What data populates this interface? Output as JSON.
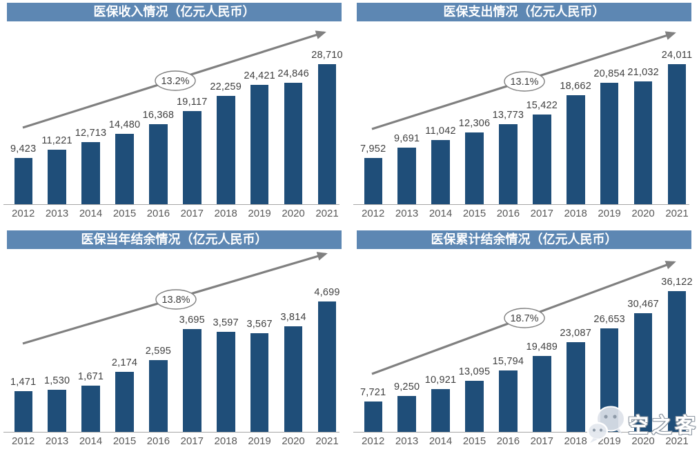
{
  "colors": {
    "bar": "#1F4E79",
    "title_bar": "#5D87B3",
    "arrow": "#808080",
    "ellipse_stroke": "#7F7F7F",
    "ellipse_fill": "#FFFFFF",
    "value_label": "#404040",
    "tick_label": "#595959",
    "axis": "#A6A6A6",
    "title_text": "#FFFFFF"
  },
  "watermark": {
    "label": "空之客",
    "icon": "wechat-icon"
  },
  "chart_data": [
    {
      "type": "bar",
      "title": "医保收入情况（亿元人民币）",
      "categories": [
        "2012",
        "2013",
        "2014",
        "2015",
        "2016",
        "2017",
        "2018",
        "2019",
        "2020",
        "2021"
      ],
      "values": [
        9423,
        11221,
        12713,
        14480,
        16368,
        19117,
        22259,
        24421,
        24846,
        28710
      ],
      "value_labels": [
        "9,423",
        "11,221",
        "12,713",
        "14,480",
        "16,368",
        "19,117",
        "22,259",
        "24,421",
        "24,846",
        "28,710"
      ],
      "cagr_label": "13.2%",
      "xlabel": "",
      "ylabel": "",
      "ylim": [
        0,
        28710
      ],
      "grid": false,
      "legend": false,
      "annotation": "gray trend arrow with CAGR ellipse"
    },
    {
      "type": "bar",
      "title": "医保支出情况（亿元人民币）",
      "categories": [
        "2012",
        "2013",
        "2014",
        "2015",
        "2016",
        "2017",
        "2018",
        "2019",
        "2020",
        "2021"
      ],
      "values": [
        7952,
        9691,
        11042,
        12306,
        13773,
        15422,
        18662,
        20854,
        21032,
        24011
      ],
      "value_labels": [
        "7,952",
        "9,691",
        "11,042",
        "12,306",
        "13,773",
        "15,422",
        "18,662",
        "20,854",
        "21,032",
        "24,011"
      ],
      "cagr_label": "13.1%",
      "xlabel": "",
      "ylabel": "",
      "ylim": [
        0,
        24011
      ],
      "grid": false,
      "legend": false,
      "annotation": "gray trend arrow with CAGR ellipse"
    },
    {
      "type": "bar",
      "title": "医保当年结余情况（亿元人民币）",
      "categories": [
        "2012",
        "2013",
        "2014",
        "2015",
        "2016",
        "2017",
        "2018",
        "2019",
        "2020",
        "2021"
      ],
      "values": [
        1471,
        1530,
        1671,
        2174,
        2595,
        3695,
        3597,
        3567,
        3814,
        4699
      ],
      "value_labels": [
        "1,471",
        "1,530",
        "1,671",
        "2,174",
        "2,595",
        "3,695",
        "3,597",
        "3,567",
        "3,814",
        "4,699"
      ],
      "cagr_label": "13.8%",
      "xlabel": "",
      "ylabel": "",
      "ylim": [
        0,
        4699
      ],
      "grid": false,
      "legend": false,
      "annotation": "gray trend arrow with CAGR ellipse"
    },
    {
      "type": "bar",
      "title": "医保累计结余情况（亿元人民币）",
      "categories": [
        "2012",
        "2013",
        "2014",
        "2015",
        "2016",
        "2017",
        "2018",
        "2019",
        "2020",
        "2021"
      ],
      "values": [
        7721,
        9250,
        10921,
        13095,
        15794,
        19489,
        23087,
        26653,
        30467,
        36122
      ],
      "value_labels": [
        "7,721",
        "9,250",
        "10,921",
        "13,095",
        "15,794",
        "19,489",
        "23,087",
        "26,653",
        "30,467",
        "36,122"
      ],
      "cagr_label": "18.7%",
      "xlabel": "",
      "ylabel": "",
      "ylim": [
        0,
        36122
      ],
      "grid": false,
      "legend": false,
      "annotation": "gray trend arrow with CAGR ellipse"
    }
  ]
}
